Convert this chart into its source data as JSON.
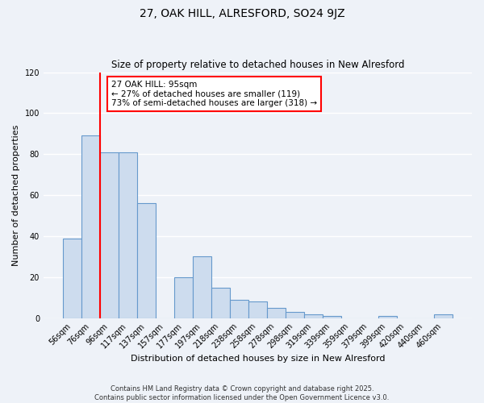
{
  "title": "27, OAK HILL, ALRESFORD, SO24 9JZ",
  "subtitle": "Size of property relative to detached houses in New Alresford",
  "xlabel": "Distribution of detached houses by size in New Alresford",
  "ylabel": "Number of detached properties",
  "bar_labels": [
    "56sqm",
    "76sqm",
    "96sqm",
    "117sqm",
    "137sqm",
    "157sqm",
    "177sqm",
    "197sqm",
    "218sqm",
    "238sqm",
    "258sqm",
    "278sqm",
    "298sqm",
    "319sqm",
    "339sqm",
    "359sqm",
    "379sqm",
    "399sqm",
    "420sqm",
    "440sqm",
    "460sqm"
  ],
  "bar_values": [
    39,
    89,
    81,
    81,
    56,
    0,
    20,
    30,
    15,
    9,
    8,
    5,
    3,
    2,
    1,
    0,
    0,
    1,
    0,
    0,
    2
  ],
  "bar_color": "#cddcee",
  "bar_edge_color": "#6699cc",
  "red_line_x": 1.5,
  "annotation_text": "27 OAK HILL: 95sqm\n← 27% of detached houses are smaller (119)\n73% of semi-detached houses are larger (318) →",
  "annotation_box_facecolor": "white",
  "annotation_box_edgecolor": "red",
  "ylim": [
    0,
    120
  ],
  "yticks": [
    0,
    20,
    40,
    60,
    80,
    100,
    120
  ],
  "footer1": "Contains HM Land Registry data © Crown copyright and database right 2025.",
  "footer2": "Contains public sector information licensed under the Open Government Licence v3.0.",
  "background_color": "#eef2f8",
  "grid_color": "#ffffff"
}
